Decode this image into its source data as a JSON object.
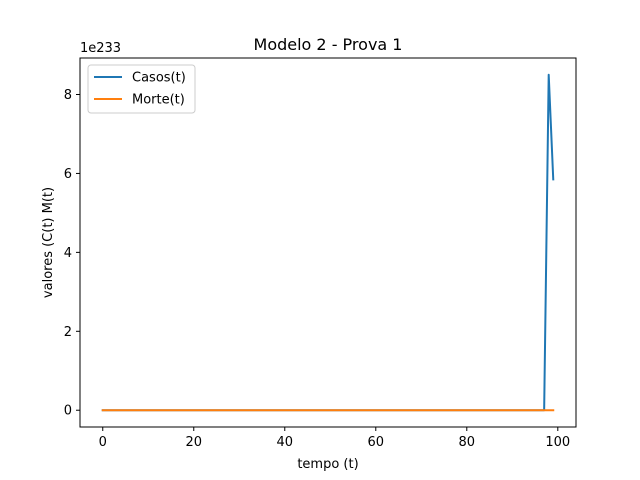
{
  "chart_data": {
    "type": "line",
    "title": "Modelo 2 - Prova 1",
    "xlabel": "tempo (t)",
    "ylabel": "valores (C(t) M(t)",
    "offset_text": "1e233",
    "xlim": [
      -5,
      104
    ],
    "ylim": [
      -0.425,
      8.925
    ],
    "x_ticks": [
      0,
      20,
      40,
      60,
      80,
      100
    ],
    "y_ticks": [
      0,
      2,
      4,
      6,
      8
    ],
    "grid": false,
    "legend_position": "top-left",
    "series": [
      {
        "name": "Casos(t)",
        "color": "#1f77b4",
        "x": [
          0,
          10,
          20,
          30,
          40,
          50,
          60,
          70,
          80,
          90,
          97,
          98,
          99
        ],
        "y": [
          0,
          0,
          0,
          0,
          0,
          0,
          0,
          0,
          0,
          0,
          0,
          8.5,
          5.85
        ]
      },
      {
        "name": "Morte(t)",
        "color": "#ff7f0e",
        "x": [
          0,
          10,
          20,
          30,
          40,
          50,
          60,
          70,
          80,
          90,
          99
        ],
        "y": [
          0,
          0,
          0,
          0,
          0,
          0,
          0,
          0,
          0,
          0,
          0
        ]
      }
    ]
  }
}
